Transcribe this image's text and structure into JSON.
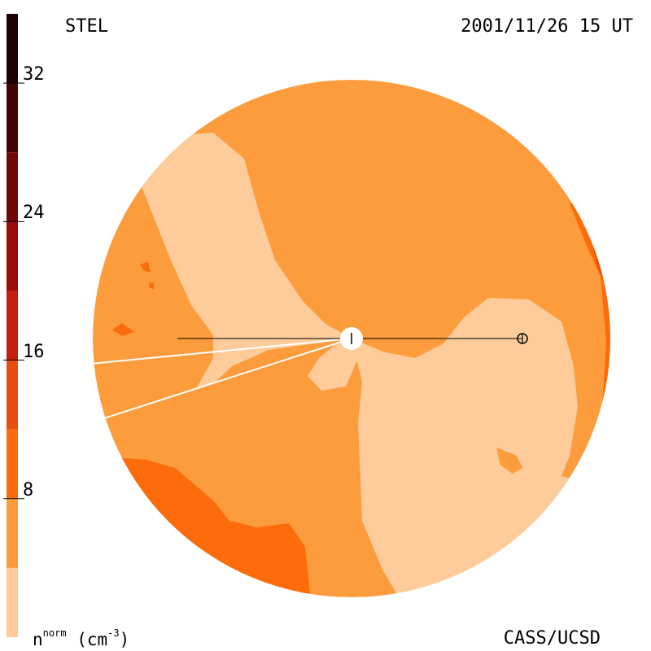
{
  "header": {
    "instrument": "STEL",
    "timestamp": "2001/11/26 15 UT"
  },
  "footer": {
    "credit": "CASS/UCSD",
    "quantity_main": "n",
    "quantity_super": "norm",
    "unit_prefix": "(cm",
    "unit_exp": "-3",
    "unit_suffix": ")"
  },
  "chart_data": {
    "type": "heatmap",
    "title": "STEL 2001/11/26 15 UT",
    "colorbar": {
      "label": "n^norm (cm^-3)",
      "range": [
        0,
        36
      ],
      "ticks": [
        {
          "value": 8,
          "label": "8"
        },
        {
          "value": 16,
          "label": "16"
        },
        {
          "value": 24,
          "label": "24"
        },
        {
          "value": 32,
          "label": "32"
        }
      ],
      "bands": [
        {
          "from": 0,
          "to": 4,
          "color": "#fdcc9a"
        },
        {
          "from": 4,
          "to": 8,
          "color": "#fc9c3c"
        },
        {
          "from": 8,
          "to": 12,
          "color": "#fd6c0a"
        },
        {
          "from": 12,
          "to": 16,
          "color": "#e5500e"
        },
        {
          "from": 16,
          "to": 20,
          "color": "#c41e10"
        },
        {
          "from": 20,
          "to": 24,
          "color": "#9c0a0a"
        },
        {
          "from": 24,
          "to": 28,
          "color": "#700808"
        },
        {
          "from": 28,
          "to": 32,
          "color": "#440404"
        },
        {
          "from": 32,
          "to": 36,
          "color": "#1e0202"
        }
      ]
    },
    "map_regions": [
      {
        "name": "background",
        "level": "4-8",
        "color": "#fc9c3c"
      },
      {
        "name": "northwest-lobe",
        "level": "0-4",
        "color": "#fdcc9a"
      },
      {
        "name": "southeast-lobe",
        "level": "0-4",
        "color": "#fdcc9a"
      },
      {
        "name": "southwest-enhancement",
        "level": "8-12",
        "color": "#fd6c0a"
      },
      {
        "name": "east-limb-enhancement",
        "level": "8-12",
        "color": "#fd6c0a"
      }
    ],
    "markers": [
      "sun-marker",
      "earth-marker"
    ]
  }
}
